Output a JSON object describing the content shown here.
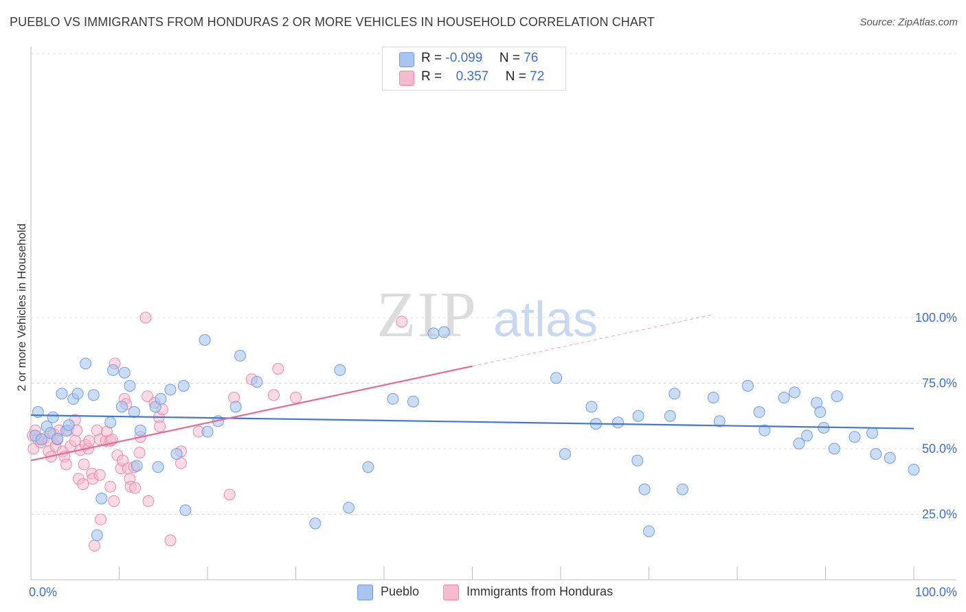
{
  "title": "PUEBLO VS IMMIGRANTS FROM HONDURAS 2 OR MORE VEHICLES IN HOUSEHOLD CORRELATION CHART",
  "source": "Source: ZipAtlas.com",
  "watermark": {
    "zip": "ZIP",
    "atlas": "atlas"
  },
  "legend_stats": [
    {
      "r_label": "R =",
      "r_value": "-0.099",
      "n_label": "N =",
      "n_value": "76"
    },
    {
      "r_label": "R =",
      "r_value": "0.357",
      "n_label": "N =",
      "n_value": "72"
    }
  ],
  "colors": {
    "pueblo_fill": "#a9c5ef",
    "pueblo_stroke": "#6f9de0",
    "pueblo_line": "#3f78d2",
    "honduras_fill": "#f6bccd",
    "honduras_stroke": "#e98aa8",
    "honduras_line": "#e66a94",
    "tick_label": "#3c6fcf",
    "grid": "#dddddd"
  },
  "chart_data": {
    "type": "scatter",
    "title": "PUEBLO VS IMMIGRANTS FROM HONDURAS 2 OR MORE VEHICLES IN HOUSEHOLD CORRELATION CHART",
    "xlabel": "",
    "ylabel": "2 or more Vehicles in Household",
    "xlim": [
      0,
      100
    ],
    "ylim": [
      0,
      105
    ],
    "x_tick_labels": [
      "0.0%",
      "100.0%"
    ],
    "y_ticks": [
      25,
      50,
      75,
      100
    ],
    "y_tick_labels": [
      "25.0%",
      "50.0%",
      "75.0%",
      "100.0%"
    ],
    "grid": true,
    "legend_position": "bottom",
    "series": [
      {
        "name": "Pueblo",
        "r": -0.099,
        "n": 76,
        "trend": {
          "x": [
            0,
            100
          ],
          "y": [
            62.8,
            57.7
          ]
        },
        "points": [
          [
            0.5,
            55.0
          ],
          [
            0.8,
            64.0
          ],
          [
            1.2,
            53.5
          ],
          [
            1.8,
            58.5
          ],
          [
            2.2,
            56.0
          ],
          [
            2.5,
            62.0
          ],
          [
            3.0,
            53.8
          ],
          [
            3.5,
            71.0
          ],
          [
            4.0,
            56.8
          ],
          [
            4.3,
            59.0
          ],
          [
            4.8,
            69.0
          ],
          [
            5.3,
            71.0
          ],
          [
            6.2,
            82.5
          ],
          [
            7.1,
            70.5
          ],
          [
            7.5,
            17.0
          ],
          [
            8.0,
            31.0
          ],
          [
            9.0,
            60.0
          ],
          [
            9.3,
            80.0
          ],
          [
            10.3,
            66.0
          ],
          [
            10.6,
            79.0
          ],
          [
            11.2,
            74.0
          ],
          [
            11.7,
            64.0
          ],
          [
            12.0,
            43.5
          ],
          [
            12.4,
            57.0
          ],
          [
            14.1,
            66.0
          ],
          [
            14.4,
            43.0
          ],
          [
            14.7,
            69.0
          ],
          [
            15.8,
            72.5
          ],
          [
            16.5,
            48.0
          ],
          [
            17.3,
            74.0
          ],
          [
            17.5,
            26.5
          ],
          [
            19.7,
            91.5
          ],
          [
            20.0,
            56.5
          ],
          [
            21.2,
            60.5
          ],
          [
            23.2,
            66.0
          ],
          [
            23.7,
            85.5
          ],
          [
            25.6,
            75.5
          ],
          [
            32.2,
            21.5
          ],
          [
            35.0,
            80.0
          ],
          [
            36.0,
            27.5
          ],
          [
            38.2,
            43.0
          ],
          [
            41.0,
            69.0
          ],
          [
            43.3,
            68.0
          ],
          [
            45.6,
            94.0
          ],
          [
            46.8,
            94.5
          ],
          [
            59.5,
            77.0
          ],
          [
            60.5,
            48.0
          ],
          [
            63.5,
            66.0
          ],
          [
            64.0,
            59.5
          ],
          [
            66.5,
            60.0
          ],
          [
            68.7,
            45.5
          ],
          [
            68.8,
            62.5
          ],
          [
            69.5,
            34.5
          ],
          [
            70.0,
            18.5
          ],
          [
            72.4,
            62.5
          ],
          [
            72.9,
            71.0
          ],
          [
            73.8,
            34.5
          ],
          [
            77.3,
            69.5
          ],
          [
            78.0,
            60.5
          ],
          [
            81.2,
            74.0
          ],
          [
            82.5,
            64.0
          ],
          [
            83.1,
            57.0
          ],
          [
            85.3,
            69.5
          ],
          [
            86.5,
            71.5
          ],
          [
            87.0,
            52.0
          ],
          [
            87.9,
            55.0
          ],
          [
            89.0,
            67.5
          ],
          [
            89.4,
            64.0
          ],
          [
            89.8,
            58.0
          ],
          [
            91.0,
            50.0
          ],
          [
            91.3,
            70.0
          ],
          [
            93.3,
            54.5
          ],
          [
            95.3,
            56.0
          ],
          [
            95.7,
            48.0
          ],
          [
            97.3,
            46.5
          ],
          [
            100.0,
            42.0
          ]
        ]
      },
      {
        "name": "Immigrants from Honduras",
        "r": 0.357,
        "n": 72,
        "trend_solid": {
          "x": [
            0,
            50
          ],
          "y": [
            45.5,
            81.5
          ]
        },
        "trend_dashed": {
          "x": [
            50,
            77
          ],
          "y": [
            81.5,
            101.0
          ]
        },
        "points": [
          [
            0.2,
            55.0
          ],
          [
            0.3,
            50.0
          ],
          [
            0.5,
            57.0
          ],
          [
            0.8,
            53.5
          ],
          [
            1.1,
            52.5
          ],
          [
            1.5,
            54.0
          ],
          [
            2.0,
            53.0
          ],
          [
            2.0,
            49.0
          ],
          [
            2.3,
            47.0
          ],
          [
            2.6,
            55.5
          ],
          [
            2.8,
            51.0
          ],
          [
            3.0,
            53.5
          ],
          [
            3.2,
            57.0
          ],
          [
            3.6,
            49.0
          ],
          [
            3.8,
            47.0
          ],
          [
            4.0,
            44.0
          ],
          [
            4.2,
            57.0
          ],
          [
            4.5,
            51.0
          ],
          [
            5.0,
            53.0
          ],
          [
            5.0,
            61.0
          ],
          [
            5.2,
            57.0
          ],
          [
            5.4,
            38.5
          ],
          [
            5.6,
            49.5
          ],
          [
            5.9,
            36.5
          ],
          [
            6.0,
            44.0
          ],
          [
            6.2,
            51.5
          ],
          [
            6.5,
            50.0
          ],
          [
            6.6,
            53.0
          ],
          [
            6.9,
            40.5
          ],
          [
            7.0,
            38.5
          ],
          [
            7.2,
            13.0
          ],
          [
            7.5,
            57.0
          ],
          [
            7.8,
            40.0
          ],
          [
            7.8,
            53.5
          ],
          [
            7.9,
            23.0
          ],
          [
            8.5,
            53.0
          ],
          [
            8.6,
            56.5
          ],
          [
            9.0,
            35.5
          ],
          [
            9.0,
            53.0
          ],
          [
            9.2,
            53.5
          ],
          [
            9.4,
            30.0
          ],
          [
            9.5,
            82.5
          ],
          [
            9.8,
            47.5
          ],
          [
            10.2,
            42.5
          ],
          [
            10.4,
            45.5
          ],
          [
            10.6,
            69.0
          ],
          [
            10.8,
            67.0
          ],
          [
            11.0,
            42.5
          ],
          [
            11.2,
            38.5
          ],
          [
            11.3,
            35.5
          ],
          [
            11.7,
            43.0
          ],
          [
            11.8,
            35.0
          ],
          [
            12.3,
            48.5
          ],
          [
            12.4,
            54.5
          ],
          [
            13.0,
            100.0
          ],
          [
            13.2,
            70.0
          ],
          [
            13.3,
            30.0
          ],
          [
            14.0,
            67.5
          ],
          [
            14.5,
            62.0
          ],
          [
            14.6,
            58.5
          ],
          [
            14.9,
            65.0
          ],
          [
            15.8,
            15.0
          ],
          [
            17.0,
            49.0
          ],
          [
            17.0,
            44.5
          ],
          [
            19.0,
            56.5
          ],
          [
            22.5,
            32.5
          ],
          [
            25.0,
            76.5
          ],
          [
            27.5,
            70.5
          ],
          [
            28.0,
            80.5
          ],
          [
            30.0,
            69.5
          ],
          [
            42.0,
            98.5
          ],
          [
            23.0,
            69.5
          ]
        ]
      }
    ]
  }
}
